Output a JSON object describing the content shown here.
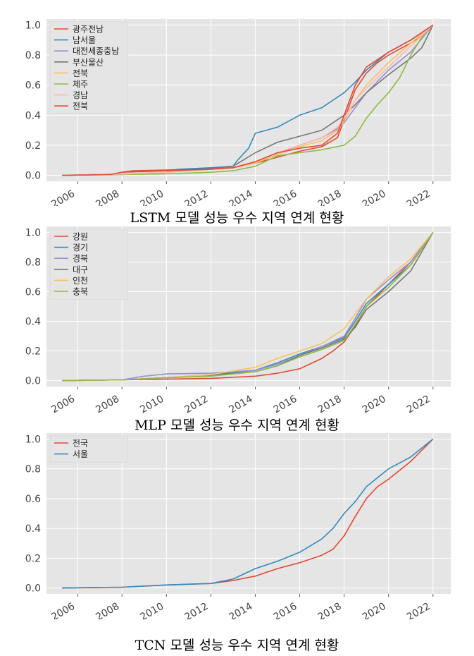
{
  "chart_data": [
    {
      "type": "line",
      "caption": "LSTM 모델 성능 우수 지역 연계 현황",
      "x_ticks": [
        "2006",
        "2008",
        "2010",
        "2012",
        "2014",
        "2016",
        "2018",
        "2020",
        "2022"
      ],
      "y_ticks": [
        "0.0",
        "0.2",
        "0.4",
        "0.6",
        "0.8",
        "1.0"
      ],
      "xlim": [
        2004.6,
        2022.8
      ],
      "ylim": [
        -0.04,
        1.04
      ],
      "grid": true,
      "legend_position": "top-left",
      "series": [
        {
          "name": "광주전남",
          "color": "#e24a33",
          "x": [
            2005.3,
            2007.5,
            2008.0,
            2008.5,
            2010.0,
            2012.0,
            2013.0,
            2014.0,
            2015.0,
            2016.0,
            2017.0,
            2017.7,
            2018.0,
            2018.5,
            2019.0,
            2019.5,
            2020.0,
            2021.0,
            2021.7,
            2022.0
          ],
          "y": [
            0.0,
            0.005,
            0.02,
            0.03,
            0.035,
            0.045,
            0.05,
            0.08,
            0.12,
            0.16,
            0.19,
            0.25,
            0.37,
            0.57,
            0.68,
            0.75,
            0.8,
            0.88,
            0.95,
            1.0
          ]
        },
        {
          "name": "남서울",
          "color": "#348abd",
          "x": [
            2005.3,
            2008.0,
            2010.0,
            2010.5,
            2012.0,
            2013.0,
            2013.2,
            2013.7,
            2014.0,
            2014.5,
            2015.0,
            2016.0,
            2017.0,
            2017.5,
            2018.0,
            2018.5,
            2019.0,
            2020.0,
            2021.0,
            2022.0
          ],
          "y": [
            0.0,
            0.005,
            0.02,
            0.04,
            0.05,
            0.06,
            0.1,
            0.18,
            0.28,
            0.3,
            0.32,
            0.4,
            0.45,
            0.5,
            0.55,
            0.62,
            0.7,
            0.82,
            0.9,
            1.0
          ]
        },
        {
          "name": "대전세종충남",
          "color": "#988ed5",
          "x": [
            2005.3,
            2008.0,
            2010.0,
            2012.0,
            2013.0,
            2014.0,
            2015.0,
            2016.0,
            2017.0,
            2017.7,
            2018.0,
            2018.5,
            2019.0,
            2020.0,
            2021.0,
            2022.0
          ],
          "y": [
            0.0,
            0.008,
            0.02,
            0.04,
            0.05,
            0.08,
            0.14,
            0.2,
            0.25,
            0.31,
            0.35,
            0.45,
            0.55,
            0.7,
            0.82,
            1.0
          ]
        },
        {
          "name": "부산울산",
          "color": "#777777",
          "x": [
            2005.3,
            2008.0,
            2010.0,
            2012.0,
            2013.0,
            2014.0,
            2015.0,
            2016.0,
            2017.0,
            2018.0,
            2018.5,
            2019.0,
            2020.0,
            2021.0,
            2021.5,
            2022.0
          ],
          "y": [
            0.0,
            0.008,
            0.02,
            0.04,
            0.06,
            0.15,
            0.22,
            0.26,
            0.3,
            0.4,
            0.47,
            0.55,
            0.67,
            0.78,
            0.85,
            1.0
          ]
        },
        {
          "name": "전북",
          "color": "#fbc15e",
          "x": [
            2005.3,
            2008.0,
            2010.0,
            2012.0,
            2013.0,
            2014.0,
            2015.0,
            2016.0,
            2017.0,
            2017.7,
            2018.0,
            2018.5,
            2019.0,
            2020.0,
            2021.0,
            2022.0
          ],
          "y": [
            0.0,
            0.008,
            0.02,
            0.04,
            0.05,
            0.08,
            0.14,
            0.19,
            0.23,
            0.3,
            0.36,
            0.5,
            0.6,
            0.75,
            0.88,
            1.0
          ]
        },
        {
          "name": "제주",
          "color": "#8eba42",
          "x": [
            2005.3,
            2008.0,
            2010.0,
            2012.0,
            2013.0,
            2014.0,
            2015.0,
            2016.0,
            2017.0,
            2018.0,
            2018.5,
            2019.0,
            2019.5,
            2020.0,
            2020.5,
            2021.0,
            2021.5,
            2022.0
          ],
          "y": [
            0.0,
            0.005,
            0.01,
            0.02,
            0.03,
            0.06,
            0.13,
            0.15,
            0.17,
            0.2,
            0.26,
            0.38,
            0.47,
            0.55,
            0.65,
            0.8,
            0.92,
            1.0
          ]
        },
        {
          "name": "경남",
          "color": "#ffb5b8",
          "x": [
            2005.3,
            2008.0,
            2010.0,
            2012.0,
            2013.0,
            2014.0,
            2015.0,
            2016.0,
            2017.0,
            2017.7,
            2018.0,
            2018.5,
            2019.0,
            2020.0,
            2021.0,
            2022.0
          ],
          "y": [
            0.0,
            0.008,
            0.02,
            0.04,
            0.05,
            0.09,
            0.15,
            0.2,
            0.25,
            0.32,
            0.38,
            0.5,
            0.58,
            0.72,
            0.86,
            1.0
          ]
        },
        {
          "name": "전북",
          "color": "#e24a33",
          "x": [
            2005.3,
            2007.5,
            2008.0,
            2010.0,
            2012.0,
            2013.0,
            2014.0,
            2015.0,
            2016.0,
            2017.0,
            2017.7,
            2018.0,
            2018.5,
            2019.0,
            2020.0,
            2021.0,
            2022.0
          ],
          "y": [
            0.0,
            0.005,
            0.02,
            0.03,
            0.04,
            0.05,
            0.09,
            0.15,
            0.18,
            0.2,
            0.28,
            0.4,
            0.6,
            0.72,
            0.82,
            0.9,
            1.0
          ]
        }
      ]
    },
    {
      "type": "line",
      "caption": "MLP 모델 성능 우수 지역 연계 현황",
      "x_ticks": [
        "2006",
        "2008",
        "2010",
        "2012",
        "2014",
        "2016",
        "2018",
        "2020",
        "2022"
      ],
      "y_ticks": [
        "0.0",
        "0.2",
        "0.4",
        "0.6",
        "0.8",
        "1.0"
      ],
      "xlim": [
        2004.6,
        2022.8
      ],
      "ylim": [
        -0.04,
        1.04
      ],
      "grid": true,
      "legend_position": "top-left",
      "series": [
        {
          "name": "강원",
          "color": "#e24a33",
          "x": [
            2005.3,
            2008.0,
            2010.0,
            2012.0,
            2014.0,
            2015.0,
            2016.0,
            2017.0,
            2017.5,
            2018.0,
            2018.5,
            2019.0,
            2020.0,
            2021.0,
            2022.0
          ],
          "y": [
            0.0,
            0.005,
            0.01,
            0.015,
            0.03,
            0.05,
            0.08,
            0.15,
            0.2,
            0.26,
            0.37,
            0.5,
            0.65,
            0.8,
            1.0
          ]
        },
        {
          "name": "경기",
          "color": "#348abd",
          "x": [
            2005.3,
            2008.0,
            2010.0,
            2012.0,
            2014.0,
            2015.0,
            2016.0,
            2017.0,
            2018.0,
            2018.5,
            2019.0,
            2020.0,
            2021.0,
            2022.0
          ],
          "y": [
            0.0,
            0.005,
            0.02,
            0.04,
            0.07,
            0.12,
            0.18,
            0.23,
            0.29,
            0.4,
            0.52,
            0.65,
            0.78,
            1.0
          ]
        },
        {
          "name": "경북",
          "color": "#988ed5",
          "x": [
            2005.3,
            2008.0,
            2009.0,
            2010.0,
            2012.0,
            2014.0,
            2015.0,
            2016.0,
            2017.0,
            2018.0,
            2018.5,
            2019.0,
            2020.0,
            2021.0,
            2022.0
          ],
          "y": [
            0.0,
            0.005,
            0.03,
            0.045,
            0.05,
            0.07,
            0.11,
            0.17,
            0.23,
            0.3,
            0.42,
            0.55,
            0.68,
            0.8,
            1.0
          ]
        },
        {
          "name": "대구",
          "color": "#777777",
          "x": [
            2005.3,
            2008.0,
            2010.0,
            2012.0,
            2014.0,
            2015.0,
            2016.0,
            2017.0,
            2018.0,
            2018.5,
            2019.0,
            2020.0,
            2021.0,
            2022.0
          ],
          "y": [
            0.0,
            0.005,
            0.02,
            0.035,
            0.06,
            0.1,
            0.17,
            0.22,
            0.28,
            0.36,
            0.48,
            0.6,
            0.74,
            1.0
          ]
        },
        {
          "name": "인천",
          "color": "#fbc15e",
          "x": [
            2005.3,
            2008.0,
            2010.0,
            2012.0,
            2014.0,
            2015.0,
            2016.0,
            2017.0,
            2018.0,
            2018.5,
            2019.0,
            2020.0,
            2021.0,
            2022.0
          ],
          "y": [
            0.0,
            0.005,
            0.02,
            0.04,
            0.09,
            0.15,
            0.2,
            0.25,
            0.35,
            0.45,
            0.55,
            0.7,
            0.82,
            1.0
          ]
        },
        {
          "name": "충북",
          "color": "#8eba42",
          "x": [
            2005.3,
            2008.0,
            2010.0,
            2012.0,
            2014.0,
            2015.0,
            2016.0,
            2017.0,
            2018.0,
            2018.5,
            2019.0,
            2020.0,
            2021.0,
            2022.0
          ],
          "y": [
            0.0,
            0.005,
            0.02,
            0.03,
            0.06,
            0.1,
            0.16,
            0.21,
            0.27,
            0.38,
            0.5,
            0.63,
            0.78,
            1.0
          ]
        }
      ]
    },
    {
      "type": "line",
      "caption": "TCN 모델 성능 우수 지역 연계 현황",
      "x_ticks": [
        "2006",
        "2008",
        "2010",
        "2012",
        "2014",
        "2016",
        "2018",
        "2020",
        "2022"
      ],
      "y_ticks": [
        "0.0",
        "0.2",
        "0.4",
        "0.6",
        "0.8",
        "1.0"
      ],
      "xlim": [
        2004.6,
        2022.8
      ],
      "ylim": [
        -0.04,
        1.04
      ],
      "grid": true,
      "legend_position": "top-left",
      "series": [
        {
          "name": "전국",
          "color": "#e24a33",
          "x": [
            2005.3,
            2008.0,
            2010.0,
            2012.0,
            2013.0,
            2014.0,
            2015.0,
            2016.0,
            2017.0,
            2017.5,
            2018.0,
            2018.5,
            2019.0,
            2019.5,
            2020.0,
            2021.0,
            2022.0
          ],
          "y": [
            0.0,
            0.005,
            0.02,
            0.03,
            0.05,
            0.08,
            0.13,
            0.17,
            0.22,
            0.26,
            0.35,
            0.48,
            0.6,
            0.68,
            0.73,
            0.85,
            1.0
          ]
        },
        {
          "name": "서울",
          "color": "#348abd",
          "x": [
            2005.3,
            2008.0,
            2010.0,
            2012.0,
            2013.0,
            2014.0,
            2015.0,
            2016.0,
            2017.0,
            2017.5,
            2018.0,
            2018.5,
            2019.0,
            2019.5,
            2020.0,
            2021.0,
            2022.0
          ],
          "y": [
            0.0,
            0.005,
            0.02,
            0.03,
            0.06,
            0.13,
            0.18,
            0.24,
            0.33,
            0.4,
            0.5,
            0.58,
            0.68,
            0.74,
            0.8,
            0.88,
            1.0
          ]
        }
      ]
    }
  ]
}
